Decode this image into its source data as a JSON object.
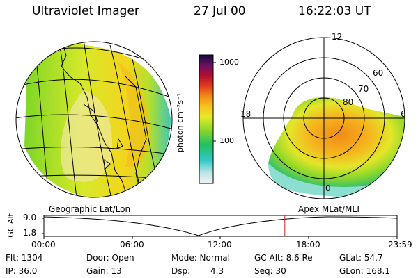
{
  "header": {
    "instrument": "Ultraviolet Imager",
    "date": "27 Jul 00",
    "time": "16:22:03 UT"
  },
  "colorbar": {
    "tick_1000": "1000",
    "tick_100": "100",
    "unit_label": "photon cm⁻²s⁻¹"
  },
  "polar": {
    "mlt_12": "12",
    "mlt_18": "18",
    "mlt_6": "6",
    "mlt_0": "0",
    "lat_60": "60",
    "lat_70": "70",
    "lat_80": "80"
  },
  "projections": {
    "left": "Geographic Lat/Lon",
    "right": "Apex MLat/MLT"
  },
  "altitude_plot": {
    "ylabel": "GC Alt",
    "tick_hi": "9.0",
    "tick_lo": "1.8",
    "x_ticks": [
      "00:00",
      "06:00",
      "12:00",
      "18:00",
      "23:59"
    ],
    "current_marker_hours": 16.37
  },
  "status": {
    "flt": "Flt: 1304",
    "ip": "IP: 36.0",
    "door": "Door: Open",
    "gain": "Gain: 13",
    "mode": "Mode: Normal",
    "dsp_label": "Dsp:",
    "dsp_value": "4.3",
    "gc_alt": "GC Alt: 8.6 Re",
    "seq": "Seq: 30",
    "glat": "GLat: 54.7",
    "glon": "GLon: 168.1"
  },
  "colors": {
    "marker": "#cc2222"
  }
}
